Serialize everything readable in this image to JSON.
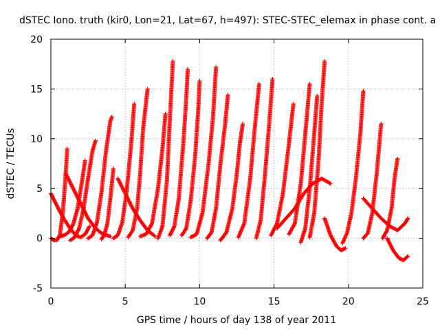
{
  "chart_data": {
    "type": "scatter",
    "title": "dSTEC Iono. truth (kir0, Lon=21, Lat=67, h=497): STEC-STEC_elemax in phase cont. a",
    "xlabel": "GPS time / hours of day 138 of year 2011",
    "ylabel": "dSTEC  / TECUs",
    "xlim": [
      0,
      25
    ],
    "ylim": [
      -5,
      20
    ],
    "xticks": [
      "0",
      "5",
      "10",
      "15",
      "20",
      "25"
    ],
    "yticks": [
      "-5",
      "0",
      "5",
      "10",
      "15",
      "20"
    ],
    "grid": true,
    "marker": "plus",
    "color": "#ff0000",
    "series": [
      {
        "x": [
          0.0,
          0.3,
          0.6,
          0.9,
          1.2,
          1.5,
          1.8,
          2.0,
          2.3,
          2.6
        ],
        "values": [
          4.5,
          3.6,
          2.7,
          1.9,
          1.2,
          0.6,
          0.2,
          0.1,
          0.4,
          1.2
        ]
      },
      {
        "x": [
          0.0,
          0.2,
          0.4,
          0.6,
          0.8,
          1.0,
          1.1
        ],
        "values": [
          0.0,
          -0.2,
          -0.2,
          0.3,
          2.5,
          6.5,
          9.0
        ]
      },
      {
        "x": [
          0.6,
          0.9,
          1.2,
          1.5,
          1.8,
          2.1,
          2.3
        ],
        "values": [
          0.2,
          0.3,
          0.6,
          1.4,
          3.0,
          5.8,
          7.8
        ]
      },
      {
        "x": [
          1.3,
          1.6,
          1.9,
          2.2,
          2.5,
          2.8,
          3.0
        ],
        "values": [
          -0.2,
          0.1,
          1.0,
          3.0,
          6.0,
          8.8,
          9.8
        ]
      },
      {
        "x": [
          2.5,
          2.8,
          3.1,
          3.4,
          3.7,
          4.0,
          4.1
        ],
        "values": [
          0.0,
          0.3,
          1.6,
          4.6,
          8.7,
          11.8,
          12.2
        ]
      },
      {
        "x": [
          3.4,
          3.6,
          3.8,
          4.0,
          4.2
        ],
        "values": [
          -0.1,
          0.4,
          1.5,
          4.0,
          7.0
        ]
      },
      {
        "x": [
          4.2,
          4.5,
          4.8,
          5.1,
          5.4,
          5.6
        ],
        "values": [
          0.0,
          0.3,
          1.6,
          4.8,
          9.5,
          13.5
        ]
      },
      {
        "x": [
          5.2,
          5.5,
          5.8,
          6.0,
          6.2,
          6.5
        ],
        "values": [
          0.1,
          0.8,
          3.0,
          6.5,
          11.0,
          15.0
        ]
      },
      {
        "x": [
          6.0,
          6.4,
          6.8,
          7.2,
          7.5,
          7.7
        ],
        "values": [
          0.2,
          0.4,
          1.5,
          5.0,
          9.0,
          12.5
        ]
      },
      {
        "x": [
          7.2,
          7.5,
          7.8,
          8.0,
          8.2
        ],
        "values": [
          0.0,
          1.2,
          5.8,
          12.0,
          17.8
        ]
      },
      {
        "x": [
          8.0,
          8.3,
          8.6,
          8.9,
          9.1,
          9.2
        ],
        "values": [
          0.3,
          1.2,
          4.0,
          9.5,
          14.0,
          17.0
        ]
      },
      {
        "x": [
          8.8,
          9.1,
          9.4,
          9.7,
          9.9,
          10.0
        ],
        "values": [
          0.3,
          1.0,
          3.8,
          8.3,
          12.8,
          15.8
        ]
      },
      {
        "x": [
          9.4,
          9.8,
          10.2,
          10.6,
          10.9,
          11.1
        ],
        "values": [
          0.1,
          0.4,
          2.6,
          7.5,
          12.2,
          17.2
        ]
      },
      {
        "x": [
          10.5,
          10.8,
          11.1,
          11.4,
          11.7,
          11.9
        ],
        "values": [
          0.0,
          0.6,
          3.0,
          7.5,
          11.3,
          14.4
        ]
      },
      {
        "x": [
          11.4,
          11.8,
          12.2,
          12.5,
          12.7,
          12.9
        ],
        "values": [
          -0.2,
          0.6,
          3.0,
          6.5,
          9.5,
          11.5
        ]
      },
      {
        "x": [
          12.6,
          13.0,
          13.4,
          13.7,
          14.0
        ],
        "values": [
          0.1,
          1.5,
          6.0,
          11.0,
          15.5
        ]
      },
      {
        "x": [
          13.8,
          14.1,
          14.4,
          14.7,
          14.9
        ],
        "values": [
          0.0,
          1.8,
          6.5,
          12.0,
          16.0
        ]
      },
      {
        "x": [
          14.8,
          15.2,
          15.6,
          16.0,
          16.3
        ],
        "values": [
          0.3,
          1.5,
          4.5,
          9.5,
          13.5
        ]
      },
      {
        "x": [
          16.0,
          16.4,
          16.8,
          17.1,
          17.4
        ],
        "values": [
          0.4,
          1.5,
          5.5,
          10.5,
          15.5
        ]
      },
      {
        "x": [
          16.8,
          17.1,
          17.4,
          17.7,
          17.9
        ],
        "values": [
          -0.4,
          1.0,
          5.0,
          10.5,
          14.3
        ]
      },
      {
        "x": [
          17.4,
          17.7,
          18.0,
          18.2,
          18.4
        ],
        "values": [
          0.1,
          2.5,
          8.0,
          13.5,
          17.8
        ]
      },
      {
        "x": [
          18.4,
          18.8,
          19.2,
          19.5,
          19.8
        ],
        "values": [
          2.0,
          0.3,
          -0.8,
          -1.2,
          -1.0
        ]
      },
      {
        "x": [
          19.6,
          19.9,
          20.2,
          20.5,
          20.8,
          21.0
        ],
        "values": [
          -0.5,
          0.5,
          2.5,
          6.0,
          10.5,
          14.8
        ]
      },
      {
        "x": [
          21.0,
          21.3,
          21.6,
          21.9,
          22.2
        ],
        "values": [
          0.0,
          0.5,
          2.5,
          6.5,
          11.5
        ]
      },
      {
        "x": [
          22.3,
          22.6,
          22.9,
          23.1,
          23.3
        ],
        "values": [
          0.0,
          0.8,
          3.0,
          6.0,
          8.0
        ]
      },
      {
        "x": [
          22.6,
          23.0,
          23.4,
          23.7,
          24.0
        ],
        "values": [
          0.0,
          -1.2,
          -2.0,
          -2.2,
          -1.8
        ]
      },
      {
        "x": [
          21.0,
          21.6,
          22.2,
          22.8,
          23.3,
          23.8,
          24.0
        ],
        "values": [
          4.0,
          3.0,
          2.0,
          1.2,
          0.8,
          1.5,
          2.0
        ]
      },
      {
        "x": [
          15.2,
          15.8,
          16.4,
          17.0,
          17.6,
          18.2,
          18.8
        ],
        "values": [
          1.0,
          2.0,
          3.0,
          4.5,
          5.5,
          6.0,
          5.5
        ]
      },
      {
        "x": [
          1.0,
          1.5,
          2.0,
          2.5,
          3.0,
          3.5,
          4.0
        ],
        "values": [
          6.5,
          5.0,
          3.5,
          2.0,
          1.0,
          0.4,
          0.2
        ]
      },
      {
        "x": [
          4.5,
          5.0,
          5.5,
          6.0,
          6.5,
          7.0
        ],
        "values": [
          6.0,
          4.5,
          3.0,
          1.8,
          0.8,
          0.2
        ]
      }
    ]
  }
}
